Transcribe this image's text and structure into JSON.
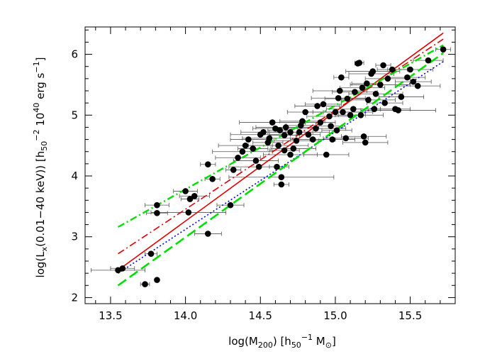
{
  "chart_data": {
    "type": "scatter",
    "xlabel": "log(M200) [h50^-1 M☉]",
    "ylabel": "log(Lx(0.01-40 keV)) [h50^-2 10^40 erg s^-1]",
    "xlim": [
      13.33,
      15.8
    ],
    "ylim": [
      1.9,
      6.45
    ],
    "xticks": [
      "13.5",
      "14.0",
      "14.5",
      "15.0",
      "15.5"
    ],
    "yticks": [
      "2",
      "3",
      "4",
      "5",
      "6"
    ],
    "grid": false,
    "series": [
      {
        "values": [
          [
            13.55,
            2.45,
            0.18
          ],
          [
            13.58,
            2.48,
            0.08
          ],
          [
            13.73,
            2.22,
            0.03
          ],
          [
            13.77,
            2.72,
            0.04
          ],
          [
            13.81,
            2.29,
            0.0
          ],
          [
            13.81,
            3.39,
            0.07
          ],
          [
            13.81,
            3.52,
            0.08
          ],
          [
            14.0,
            3.75,
            0.08
          ],
          [
            14.02,
            3.4,
            0.25
          ],
          [
            14.03,
            3.62,
            0.06
          ],
          [
            14.06,
            3.67,
            0.1
          ],
          [
            14.15,
            3.05,
            0.09
          ],
          [
            14.15,
            4.19,
            0.05
          ],
          [
            14.18,
            3.95,
            0.05
          ],
          [
            14.3,
            3.52,
            0.09
          ],
          [
            14.32,
            4.1,
            0.05
          ],
          [
            14.35,
            4.3,
            0.15
          ],
          [
            14.38,
            4.4,
            0.2
          ],
          [
            14.4,
            4.5,
            0.18
          ],
          [
            14.42,
            4.6,
            0.12
          ],
          [
            14.45,
            4.45,
            0.1
          ],
          [
            14.47,
            4.25,
            0.15
          ],
          [
            14.49,
            4.15,
            0.2
          ],
          [
            14.5,
            4.68,
            0.2
          ],
          [
            14.52,
            4.72,
            0.15
          ],
          [
            14.55,
            4.55,
            0.1
          ],
          [
            14.56,
            4.62,
            0.18
          ],
          [
            14.58,
            4.88,
            0.22
          ],
          [
            14.6,
            4.78,
            0.15
          ],
          [
            14.61,
            4.15,
            0.05
          ],
          [
            14.62,
            4.5,
            0.2
          ],
          [
            14.63,
            4.75,
            0.08
          ],
          [
            14.64,
            3.98,
            0.35
          ],
          [
            14.64,
            3.86,
            0.05
          ],
          [
            14.66,
            4.42,
            0.1
          ],
          [
            14.66,
            4.67,
            0.1
          ],
          [
            14.67,
            4.8,
            0.2
          ],
          [
            14.7,
            4.35,
            0.18
          ],
          [
            14.7,
            4.72,
            0.15
          ],
          [
            14.72,
            4.45,
            0.15
          ],
          [
            14.74,
            4.58,
            0.15
          ],
          [
            14.76,
            4.72,
            0.2
          ],
          [
            14.77,
            4.83,
            0.1
          ],
          [
            14.78,
            4.9,
            0.15
          ],
          [
            14.8,
            5.05,
            0.12
          ],
          [
            14.82,
            4.68,
            0.08
          ],
          [
            14.85,
            4.6,
            0.15
          ],
          [
            14.87,
            4.78,
            0.2
          ],
          [
            14.88,
            5.15,
            0.15
          ],
          [
            14.9,
            4.88,
            0.1
          ],
          [
            14.92,
            5.18,
            0.12
          ],
          [
            14.94,
            4.35,
            0.15
          ],
          [
            14.96,
            4.98,
            0.15
          ],
          [
            14.97,
            4.82,
            0.08
          ],
          [
            14.98,
            4.6,
            0.15
          ],
          [
            15.0,
            5.05,
            0.2
          ],
          [
            15.01,
            4.75,
            0.1
          ],
          [
            15.02,
            5.28,
            0.18
          ],
          [
            15.03,
            5.4,
            0.18
          ],
          [
            15.04,
            5.62,
            0.05
          ],
          [
            15.05,
            5.05,
            0.2
          ],
          [
            15.07,
            4.62,
            0.15
          ],
          [
            15.08,
            5.27,
            0.15
          ],
          [
            15.1,
            5.0,
            0.1
          ],
          [
            15.12,
            5.1,
            0.18
          ],
          [
            15.13,
            5.38,
            0.15
          ],
          [
            15.15,
            5.85,
            0.02
          ],
          [
            15.16,
            5.86,
            0.03
          ],
          [
            15.17,
            5.0,
            0.15
          ],
          [
            15.18,
            5.45,
            0.15
          ],
          [
            15.19,
            4.65,
            0.15
          ],
          [
            15.2,
            4.55,
            0.15
          ],
          [
            15.21,
            5.52,
            0.1
          ],
          [
            15.22,
            5.25,
            0.18
          ],
          [
            15.24,
            5.68,
            0.15
          ],
          [
            15.25,
            5.72,
            0.18
          ],
          [
            15.26,
            5.1,
            0.15
          ],
          [
            15.27,
            5.35,
            0.18
          ],
          [
            15.3,
            5.5,
            0.2
          ],
          [
            15.32,
            5.82,
            0.05
          ],
          [
            15.33,
            5.2,
            0.12
          ],
          [
            15.35,
            5.6,
            0.15
          ],
          [
            15.38,
            5.75,
            0.1
          ],
          [
            15.4,
            5.1,
            0.1
          ],
          [
            15.42,
            5.08,
            0.25
          ],
          [
            15.44,
            5.3,
            0.15
          ],
          [
            15.48,
            5.62,
            0.12
          ],
          [
            15.5,
            5.75,
            0.15
          ],
          [
            15.52,
            5.55,
            0.12
          ],
          [
            15.55,
            5.48,
            0.15
          ],
          [
            15.62,
            5.9,
            0.1
          ],
          [
            15.72,
            6.08,
            0.05
          ]
        ],
        "color": "#000000"
      }
    ],
    "fit_lines": [
      {
        "style": "solid",
        "color": "#e00000",
        "x": [
          13.55,
          15.72
        ],
        "y": [
          2.45,
          6.35
        ]
      },
      {
        "style": "dashdot",
        "color": "#e00000",
        "x": [
          13.55,
          15.72
        ],
        "y": [
          2.72,
          6.25
        ]
      },
      {
        "style": "dotted",
        "color": "#0000dd",
        "x": [
          13.55,
          15.72
        ],
        "y": [
          2.4,
          5.88
        ]
      },
      {
        "style": "dashed",
        "color": "#00e000",
        "x": [
          13.55,
          15.72
        ],
        "y": [
          2.2,
          6.02
        ]
      },
      {
        "style": "dashdot",
        "color": "#00e000",
        "x": [
          13.55,
          15.72
        ],
        "y": [
          3.16,
          6.15
        ]
      }
    ]
  }
}
